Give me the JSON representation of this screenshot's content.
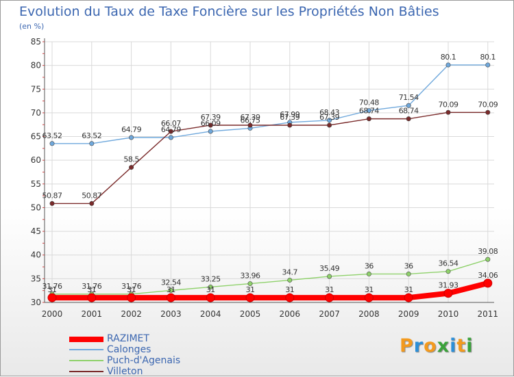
{
  "chart_data": {
    "type": "line",
    "title": "Evolution du Taux de Taxe Foncière sur les Propriétés Non Bâties",
    "unit_label": "(en %)",
    "x": [
      "2000",
      "2001",
      "2002",
      "2003",
      "2004",
      "2005",
      "2006",
      "2007",
      "2008",
      "2009",
      "2010",
      "2011"
    ],
    "ylim": [
      30,
      85
    ],
    "yticks": [
      "30",
      "35",
      "40",
      "45",
      "50",
      "55",
      "60",
      "65",
      "70",
      "75",
      "80",
      "85"
    ],
    "grid": true,
    "legend_position": "bottom-left",
    "series": [
      {
        "name": "RAZIMET",
        "color": "#ff0000",
        "values": [
          31,
          31,
          31,
          31,
          31,
          31,
          31,
          31,
          31,
          31,
          31.93,
          34.06
        ],
        "labels": [
          "31",
          "31",
          "31",
          "31",
          "31",
          "31",
          "31",
          "31",
          "31",
          "31",
          "31.93",
          "34.06"
        ]
      },
      {
        "name": "Calonges",
        "color": "#6fa8dc",
        "values": [
          63.52,
          63.52,
          64.79,
          64.79,
          66.09,
          66.75,
          67.99,
          68.43,
          70.48,
          71.54,
          80.1,
          80.1
        ],
        "labels": [
          "63.52",
          "63.52",
          "64.79",
          "64.79",
          "66.09",
          "66.75",
          "67.99",
          "68.43",
          "70.48",
          "71.54",
          "80.1",
          "80.1"
        ]
      },
      {
        "name": "Puch-d'Agenais",
        "color": "#8ed16a",
        "values": [
          31.76,
          31.76,
          31.76,
          32.54,
          33.25,
          33.96,
          34.7,
          35.49,
          36,
          36,
          36.54,
          39.08
        ],
        "labels": [
          "31.76",
          "31.76",
          "31.76",
          "32.54",
          "33.25",
          "33.96",
          "34.7",
          "35.49",
          "36",
          "36",
          "36.54",
          "39.08"
        ]
      },
      {
        "name": "Villeton",
        "color": "#7a2a2a",
        "values": [
          50.87,
          50.87,
          58.5,
          66.07,
          67.39,
          67.39,
          67.39,
          67.39,
          68.74,
          68.74,
          70.09,
          70.09
        ],
        "labels": [
          "50.87",
          "50.87",
          "58.5",
          "66.07",
          "67.39",
          "67.39",
          "67.39",
          "67.39",
          "68.74",
          "68.74",
          "70.09",
          "70.09"
        ]
      }
    ]
  },
  "brand": {
    "letters": [
      "P",
      "r",
      "o",
      "x",
      "i",
      "t",
      "i"
    ],
    "colors": [
      "#f39a1e",
      "#2c8fd8",
      "#f39a1e",
      "#3aa23a",
      "#2c8fd8",
      "#f39a1e",
      "#3aa23a"
    ]
  }
}
